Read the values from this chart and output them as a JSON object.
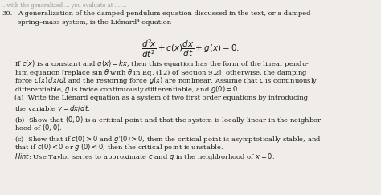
{
  "background_color": "#f0ede8",
  "text_color": "#1a1a1a",
  "figsize": [
    4.74,
    2.43
  ],
  "dpi": 100,
  "fontsize": 6.0,
  "fontsize_eq": 7.5,
  "number": "30.",
  "top_text": "... with the generalized ... you evaluate at ... ...",
  "line1": "A generalization of the damped pendulum equation discussed in the text, or a damped",
  "line2": "spring–mass system, is the Liénard⁴ equation",
  "equation": "$\\dfrac{d^2\\!x}{dt^2} + c(x)\\dfrac{dx}{dt} + g(x) = 0.$",
  "p1l1": "If $c(x)$ is a constant and $g(x) = kx$, then this equation has the form of the linear pendu-",
  "p1l2": "lum equation [replace sin $\\theta$ with $\\theta$ in Eq. (12) of Section 9.2]; otherwise, the damping",
  "p1l3": "force $c(x)\\,dx/dt$ and the restoring force $g(x)$ are nonlinear. Assume that $c$ is continuously",
  "p1l4": "differentiable, $g$ is twice continuously differentiable, and $g(0) = 0$.",
  "al1": "(a)  Write the Liénard equation as a system of two first order equations by introducing",
  "al2": "the variable $y = dx/dt$.",
  "bl1": "(b)  Show that $(0, 0)$ is a critical point and that the system is locally linear in the neighbor-",
  "bl2": "hood of $(0, 0)$.",
  "cl1": "(c)  Show that if $c(0) > 0$ and $g^{\\prime}(0) > 0$, then the critical point is asymptotically stable, and",
  "cl2": "that if $c(0) < 0$ or $g^{\\prime}(0) < 0$, then the critical point is unstable.",
  "hl1": "$\\mathit{Hint}$: Use Taylor series to approximate $c$ and $g$ in the neighborhood of $x = 0$."
}
